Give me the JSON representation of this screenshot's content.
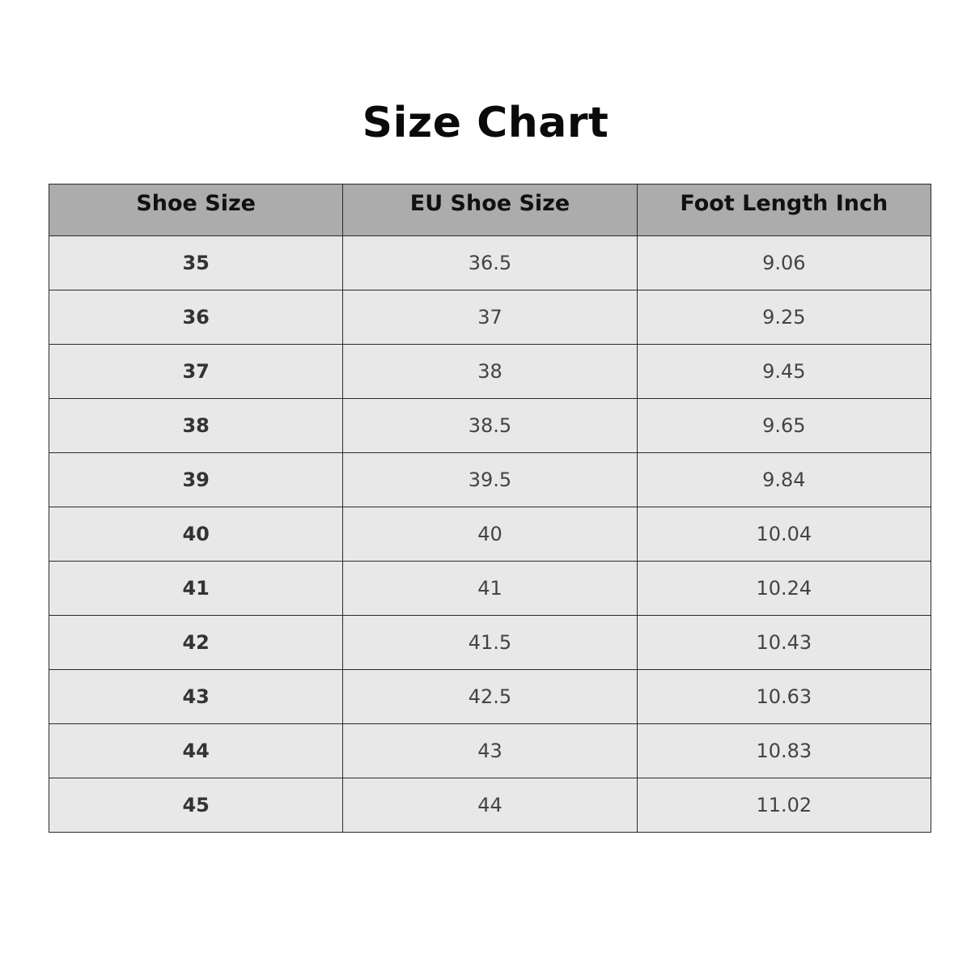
{
  "title": "Size Chart",
  "table": {
    "headers": [
      "Shoe Size",
      "EU Shoe Size",
      "Foot Length Inch"
    ],
    "rows": [
      [
        "35",
        "36.5",
        "9.06"
      ],
      [
        "36",
        "37",
        "9.25"
      ],
      [
        "37",
        "38",
        "9.45"
      ],
      [
        "38",
        "38.5",
        "9.65"
      ],
      [
        "39",
        "39.5",
        "9.84"
      ],
      [
        "40",
        "40",
        "10.04"
      ],
      [
        "41",
        "41",
        "10.24"
      ],
      [
        "42",
        "41.5",
        "10.43"
      ],
      [
        "43",
        "42.5",
        "10.63"
      ],
      [
        "44",
        "43",
        "10.83"
      ],
      [
        "45",
        "44",
        "11.02"
      ]
    ]
  },
  "colors": {
    "header_bg": "#acacac",
    "row_bg": "#e8e8e8",
    "border": "#2a2a2a"
  }
}
